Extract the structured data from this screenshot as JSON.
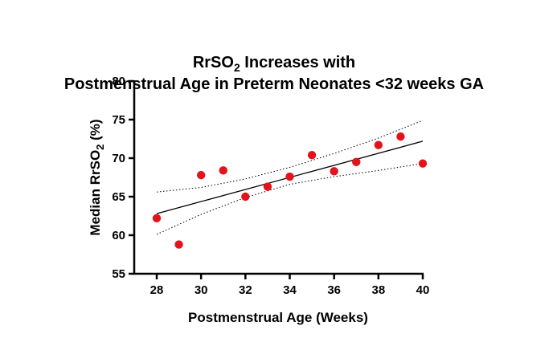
{
  "chart_data": {
    "type": "scatter",
    "title_line1": "RrSO",
    "title_sub": "2",
    "title_line1_rest": " Increases with",
    "title_line2": "Postmenstrual Age in Preterm Neonates <32 weeks GA",
    "xlabel": "Postmenstrual Age (Weeks)",
    "ylabel_main": "Median RrSO",
    "ylabel_sub": "2",
    "ylabel_rest": " (%)",
    "xlim": [
      28,
      40
    ],
    "ylim": [
      55,
      80
    ],
    "x_ticks": [
      28,
      30,
      32,
      34,
      36,
      38,
      40
    ],
    "y_ticks": [
      55,
      60,
      65,
      70,
      75,
      80
    ],
    "grid": false,
    "points": [
      {
        "x": 28,
        "y": 62.2
      },
      {
        "x": 29,
        "y": 58.8
      },
      {
        "x": 30,
        "y": 67.8
      },
      {
        "x": 31,
        "y": 68.4
      },
      {
        "x": 32,
        "y": 65.0
      },
      {
        "x": 33,
        "y": 66.3
      },
      {
        "x": 34,
        "y": 67.6
      },
      {
        "x": 35,
        "y": 70.4
      },
      {
        "x": 36,
        "y": 68.3
      },
      {
        "x": 37,
        "y": 69.5
      },
      {
        "x": 38,
        "y": 71.7
      },
      {
        "x": 39,
        "y": 72.8
      },
      {
        "x": 40,
        "y": 69.3
      }
    ],
    "fit_line": {
      "x": [
        28,
        40
      ],
      "y": [
        62.8,
        72.2
      ]
    },
    "ci_upper": {
      "x": [
        28,
        30,
        32,
        34,
        36,
        38,
        40
      ],
      "y": [
        65.6,
        66.2,
        67.3,
        68.8,
        70.6,
        72.6,
        74.9
      ]
    },
    "ci_lower": {
      "x": [
        28,
        30,
        32,
        34,
        36,
        38,
        40
      ],
      "y": [
        60.1,
        62.7,
        64.9,
        66.6,
        67.6,
        68.4,
        69.3
      ]
    },
    "point_color": "#e3131b",
    "line_color": "#000000"
  }
}
